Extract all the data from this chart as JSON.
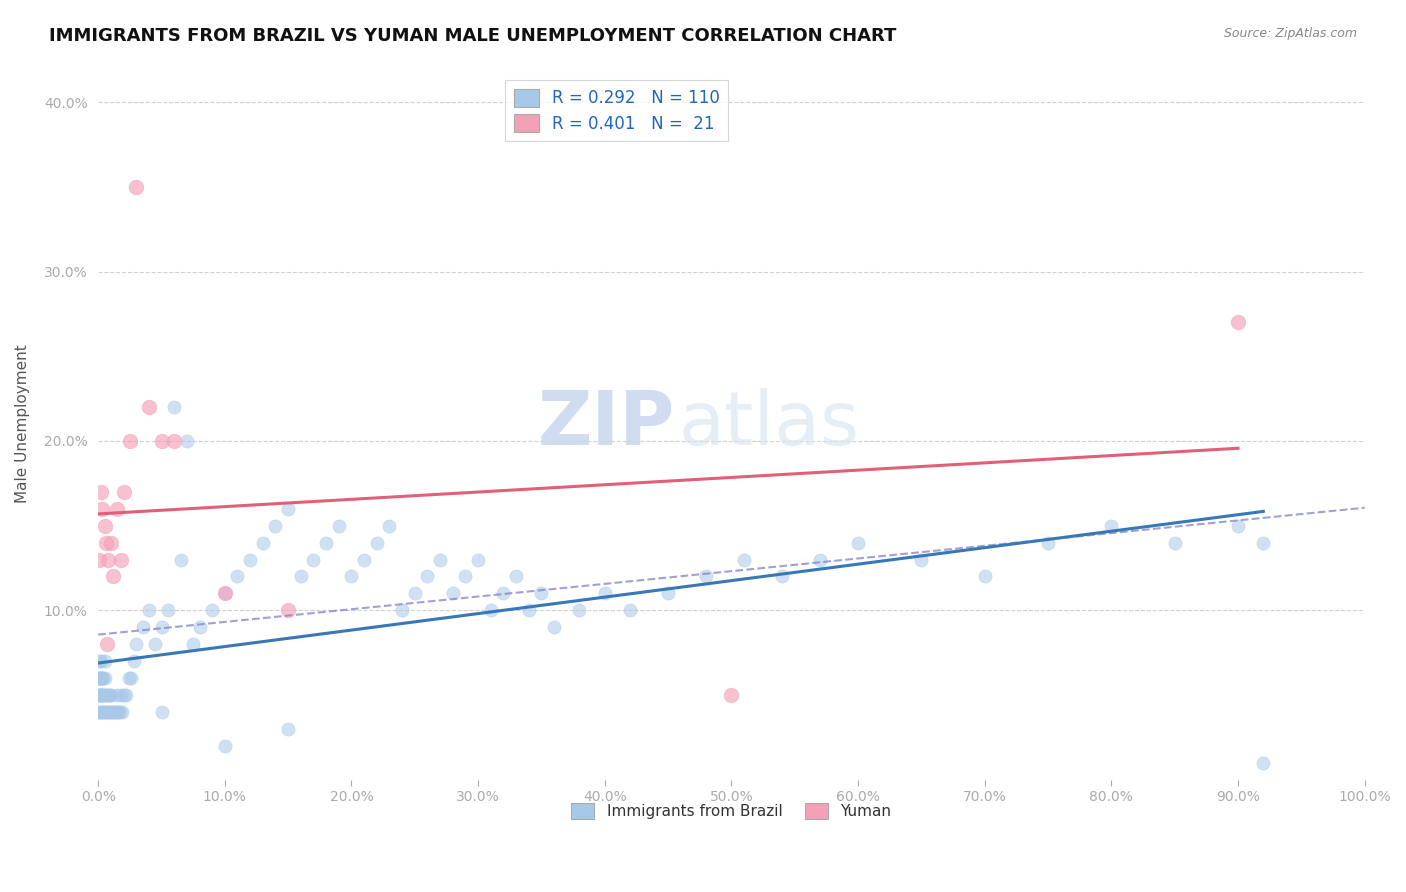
{
  "title": "IMMIGRANTS FROM BRAZIL VS YUMAN MALE UNEMPLOYMENT CORRELATION CHART",
  "source": "Source: ZipAtlas.com",
  "ylabel": "Male Unemployment",
  "legend_labels": [
    "Immigrants from Brazil",
    "Yuman"
  ],
  "R_blue": 0.292,
  "N_blue": 110,
  "R_pink": 0.401,
  "N_pink": 21,
  "blue_color": "#a8c8e8",
  "pink_color": "#f4a0b8",
  "blue_line_color": "#3878b8",
  "pink_line_color": "#e0607a",
  "dashed_line_color": "#8888cc",
  "background_color": "#ffffff",
  "watermark_zip": "ZIP",
  "watermark_atlas": "atlas",
  "xlim": [
    0.0,
    1.0
  ],
  "ylim": [
    0.0,
    0.42
  ],
  "xticks": [
    0.0,
    0.1,
    0.2,
    0.3,
    0.4,
    0.5,
    0.6,
    0.7,
    0.8,
    0.9,
    1.0
  ],
  "yticks": [
    0.0,
    0.1,
    0.2,
    0.3,
    0.4
  ],
  "xticklabels": [
    "0.0%",
    "10.0%",
    "20.0%",
    "30.0%",
    "40.0%",
    "50.0%",
    "60.0%",
    "70.0%",
    "80.0%",
    "90.0%",
    "100.0%"
  ],
  "yticklabels": [
    "",
    "10.0%",
    "20.0%",
    "30.0%",
    "40.0%"
  ],
  "blue_x": [
    0.001,
    0.001,
    0.001,
    0.001,
    0.001,
    0.001,
    0.001,
    0.001,
    0.001,
    0.002,
    0.002,
    0.002,
    0.002,
    0.002,
    0.002,
    0.003,
    0.003,
    0.003,
    0.003,
    0.004,
    0.004,
    0.004,
    0.005,
    0.005,
    0.005,
    0.005,
    0.006,
    0.006,
    0.007,
    0.007,
    0.008,
    0.008,
    0.009,
    0.009,
    0.01,
    0.01,
    0.011,
    0.012,
    0.013,
    0.014,
    0.015,
    0.015,
    0.016,
    0.017,
    0.018,
    0.019,
    0.02,
    0.022,
    0.024,
    0.026,
    0.028,
    0.03,
    0.035,
    0.04,
    0.045,
    0.05,
    0.055,
    0.06,
    0.065,
    0.07,
    0.075,
    0.08,
    0.09,
    0.1,
    0.11,
    0.12,
    0.13,
    0.14,
    0.15,
    0.16,
    0.17,
    0.18,
    0.19,
    0.2,
    0.21,
    0.22,
    0.23,
    0.24,
    0.25,
    0.26,
    0.27,
    0.28,
    0.29,
    0.3,
    0.31,
    0.32,
    0.33,
    0.34,
    0.35,
    0.36,
    0.38,
    0.4,
    0.42,
    0.45,
    0.48,
    0.51,
    0.54,
    0.57,
    0.6,
    0.65,
    0.7,
    0.75,
    0.8,
    0.85,
    0.9,
    0.92,
    0.05,
    0.1,
    0.15,
    0.92
  ],
  "blue_y": [
    0.04,
    0.05,
    0.06,
    0.07,
    0.05,
    0.06,
    0.04,
    0.05,
    0.06,
    0.05,
    0.06,
    0.07,
    0.05,
    0.04,
    0.06,
    0.05,
    0.06,
    0.04,
    0.05,
    0.05,
    0.06,
    0.04,
    0.04,
    0.05,
    0.06,
    0.07,
    0.05,
    0.04,
    0.05,
    0.04,
    0.04,
    0.05,
    0.04,
    0.05,
    0.04,
    0.05,
    0.04,
    0.04,
    0.04,
    0.04,
    0.04,
    0.05,
    0.04,
    0.04,
    0.05,
    0.04,
    0.05,
    0.05,
    0.06,
    0.06,
    0.07,
    0.08,
    0.09,
    0.1,
    0.08,
    0.09,
    0.1,
    0.22,
    0.13,
    0.2,
    0.08,
    0.09,
    0.1,
    0.11,
    0.12,
    0.13,
    0.14,
    0.15,
    0.16,
    0.12,
    0.13,
    0.14,
    0.15,
    0.12,
    0.13,
    0.14,
    0.15,
    0.1,
    0.11,
    0.12,
    0.13,
    0.11,
    0.12,
    0.13,
    0.1,
    0.11,
    0.12,
    0.1,
    0.11,
    0.09,
    0.1,
    0.11,
    0.1,
    0.11,
    0.12,
    0.13,
    0.12,
    0.13,
    0.14,
    0.13,
    0.12,
    0.14,
    0.15,
    0.14,
    0.15,
    0.14,
    0.04,
    0.02,
    0.03,
    0.01
  ],
  "pink_x": [
    0.001,
    0.002,
    0.003,
    0.005,
    0.006,
    0.007,
    0.008,
    0.01,
    0.012,
    0.015,
    0.018,
    0.02,
    0.025,
    0.03,
    0.04,
    0.05,
    0.06,
    0.1,
    0.15,
    0.5,
    0.9
  ],
  "pink_y": [
    0.13,
    0.17,
    0.16,
    0.15,
    0.14,
    0.08,
    0.13,
    0.14,
    0.12,
    0.16,
    0.13,
    0.17,
    0.2,
    0.35,
    0.22,
    0.2,
    0.2,
    0.11,
    0.1,
    0.05,
    0.27
  ]
}
